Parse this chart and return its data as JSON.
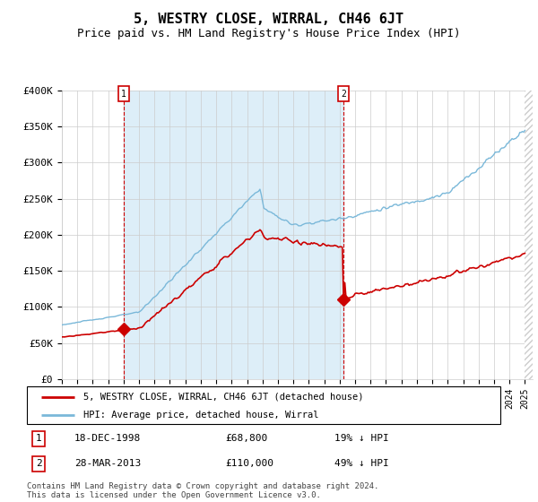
{
  "title": "5, WESTRY CLOSE, WIRRAL, CH46 6JT",
  "subtitle": "Price paid vs. HM Land Registry's House Price Index (HPI)",
  "ylim": [
    0,
    400000
  ],
  "yticks": [
    0,
    50000,
    100000,
    150000,
    200000,
    250000,
    300000,
    350000,
    400000
  ],
  "ytick_labels": [
    "£0",
    "£50K",
    "£100K",
    "£150K",
    "£200K",
    "£250K",
    "£300K",
    "£350K",
    "£400K"
  ],
  "hpi_color": "#7ab8d9",
  "price_color": "#cc0000",
  "shade_color": "#ddeef8",
  "annotation_box_color": "#cc0000",
  "t1_year": 1999.0,
  "t2_year": 2013.25,
  "t1_price": 68800,
  "t2_price": 110000,
  "transaction1": {
    "date": "18-DEC-1998",
    "price": 68800,
    "hpi_pct": "19% ↓ HPI"
  },
  "transaction2": {
    "date": "28-MAR-2013",
    "price": 110000,
    "hpi_pct": "49% ↓ HPI"
  },
  "legend_label_price": "5, WESTRY CLOSE, WIRRAL, CH46 6JT (detached house)",
  "legend_label_hpi": "HPI: Average price, detached house, Wirral",
  "footer": "Contains HM Land Registry data © Crown copyright and database right 2024.\nThis data is licensed under the Open Government Licence v3.0.",
  "title_fontsize": 11,
  "subtitle_fontsize": 9,
  "tick_fontsize": 8,
  "xmin": 1995,
  "xmax": 2025.5
}
